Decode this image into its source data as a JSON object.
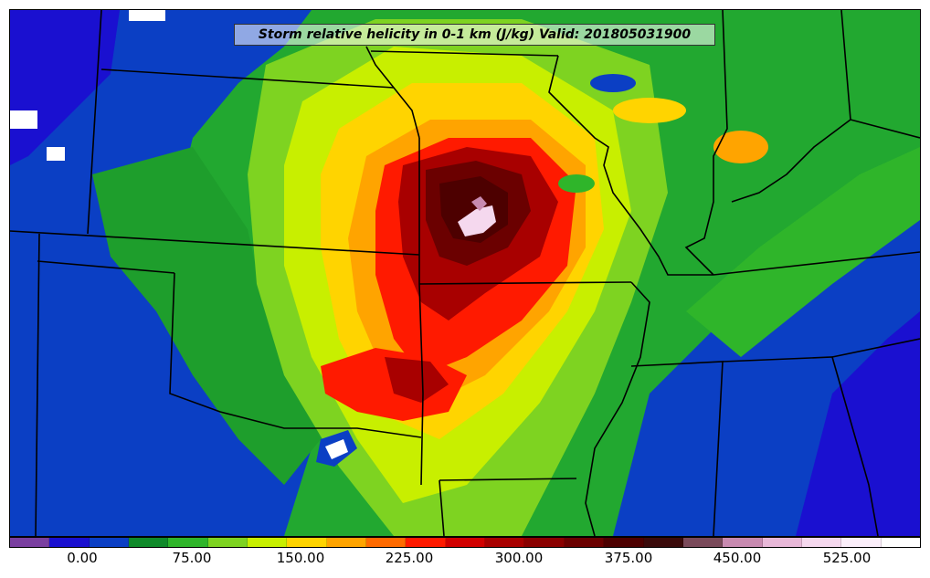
{
  "title": "Storm relative helicity in 0-1 km (J/kg) Valid: 201805031900",
  "colorbar": {
    "colors": [
      "#7a3fa0",
      "#1a10d0",
      "#0b3fc4",
      "#0f8a2a",
      "#2fb52a",
      "#7ed321",
      "#c8ef00",
      "#ffd400",
      "#ffa400",
      "#ff6a00",
      "#ff1a00",
      "#d10000",
      "#a80000",
      "#8a0000",
      "#6b0000",
      "#4d0000",
      "#3a0a0a",
      "#7a4a5a",
      "#c88ab0",
      "#e8b8d8",
      "#f5d8ee",
      "#fbeefa",
      "#ffffff"
    ],
    "tick_labels": [
      "0.00",
      "75.00",
      "150.00",
      "225.00",
      "300.00",
      "375.00",
      "450.00",
      "525.00"
    ]
  }
}
